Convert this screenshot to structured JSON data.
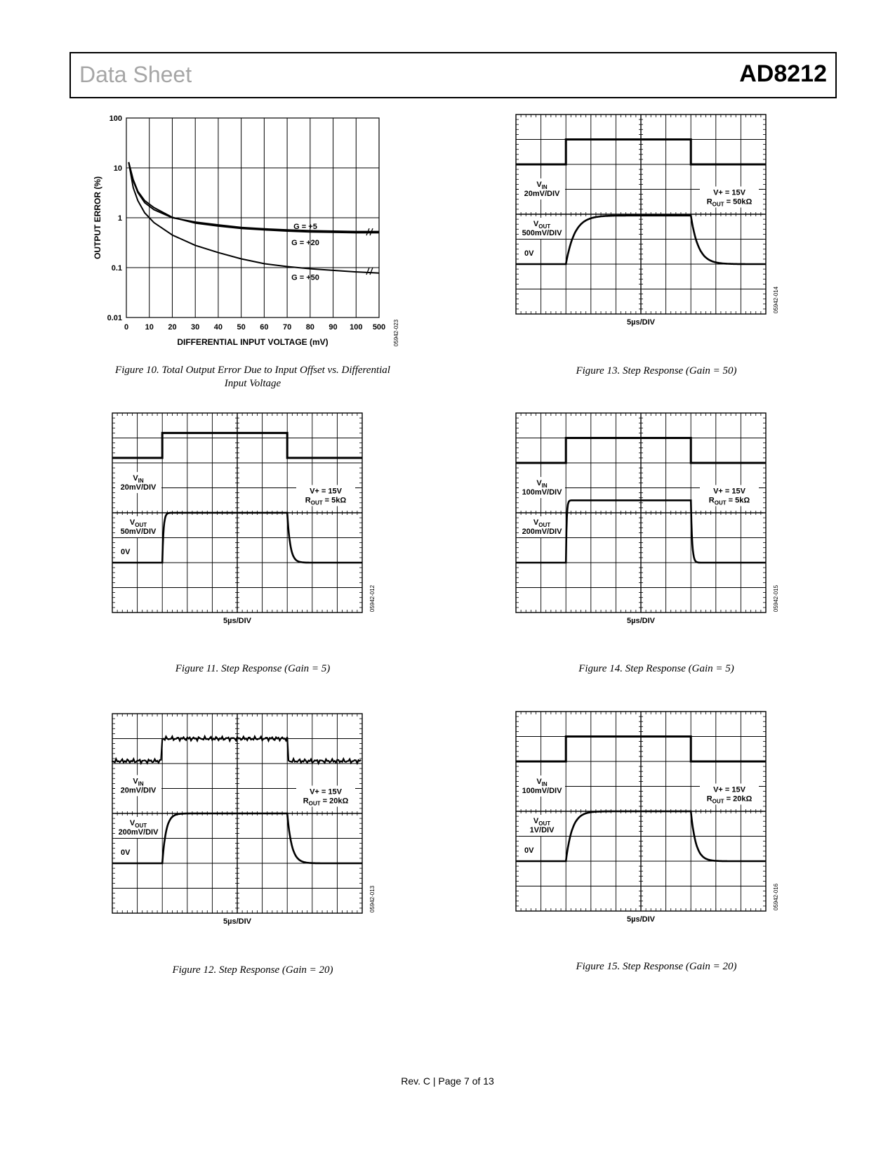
{
  "header": {
    "left": "Data Sheet",
    "right": "AD8212"
  },
  "footer": "Rev. C | Page 7 of 13",
  "chart_data": [
    {
      "id": "fig10",
      "type": "line",
      "caption_line1": "Figure 10. Total Output Error Due to Input Offset vs. Differential",
      "caption_line2": "Input Voltage",
      "xlabel": "DIFFERENTIAL INPUT VOLTAGE (mV)",
      "ylabel": "OUTPUT ERROR (%)",
      "code": "05942-023",
      "yscale": "log",
      "ylim": [
        0.01,
        100
      ],
      "xlim": [
        0,
        110
      ],
      "x_ticks": [
        "0",
        "10",
        "20",
        "30",
        "40",
        "50",
        "60",
        "70",
        "80",
        "90",
        "100",
        "500"
      ],
      "y_ticks": [
        "0.01",
        "0.1",
        "1",
        "10",
        "100"
      ],
      "grid": true,
      "series": [
        {
          "name": "G = +5",
          "x": [
            1,
            3,
            5,
            8,
            12,
            20,
            30,
            40,
            50,
            60,
            70,
            80,
            90,
            100,
            105,
            110
          ],
          "y": [
            13,
            5.5,
            3.2,
            2.0,
            1.45,
            1.0,
            0.82,
            0.72,
            0.64,
            0.6,
            0.57,
            0.55,
            0.54,
            0.53,
            0.53,
            0.53
          ]
        },
        {
          "name": "G = +20",
          "x": [
            1,
            3,
            5,
            8,
            12,
            20,
            30,
            40,
            50,
            60,
            70,
            80,
            90,
            100,
            105,
            110
          ],
          "y": [
            13,
            5.8,
            3.4,
            2.2,
            1.6,
            1.02,
            0.78,
            0.68,
            0.61,
            0.57,
            0.54,
            0.52,
            0.51,
            0.5,
            0.5,
            0.5
          ]
        },
        {
          "name": "G = +50",
          "x": [
            1,
            3,
            5,
            8,
            12,
            20,
            30,
            40,
            50,
            60,
            70,
            80,
            90,
            100,
            105,
            110
          ],
          "y": [
            13,
            4.0,
            2.2,
            1.25,
            0.8,
            0.45,
            0.28,
            0.2,
            0.15,
            0.12,
            0.105,
            0.095,
            0.088,
            0.082,
            0.08,
            0.078
          ]
        }
      ]
    },
    {
      "id": "fig11",
      "type": "line",
      "caption": "Figure 11. Step Response (Gain = 5)",
      "code": "05942-012",
      "xlabel": "5µs/DIV",
      "vin_sub": "IN",
      "vin_scale": "20mV/DIV",
      "vout_sub": "OUT",
      "vout_scale": "50mV/DIV",
      "zero_label": "0V",
      "cond1": "V+ = 15V",
      "rout_sub": "OUT",
      "rout_value": " = 5kΩ",
      "vin_levels_div": [
        6.2,
        7.2
      ],
      "vout_levels_div": [
        2.0,
        4.0
      ],
      "step_up_div": 2.0,
      "step_down_div": 7.0,
      "rise_tau_div": 0.05,
      "fall_tau_div": 0.12,
      "noisy": false
    },
    {
      "id": "fig12",
      "type": "line",
      "caption": "Figure 12. Step Response (Gain = 20)",
      "code": "05942-013",
      "xlabel": "5µs/DIV",
      "vin_sub": "IN",
      "vin_scale": "20mV/DIV",
      "vout_sub": "OUT",
      "vout_scale": "200mV/DIV",
      "zero_label": "0V",
      "cond1": "V+ = 15V",
      "rout_sub": "OUT",
      "rout_value": " = 20kΩ",
      "vin_levels_div": [
        6.1,
        7.0
      ],
      "vout_levels_div": [
        2.0,
        4.0
      ],
      "step_up_div": 2.0,
      "step_down_div": 7.0,
      "rise_tau_div": 0.15,
      "fall_tau_div": 0.18,
      "noisy": true
    },
    {
      "id": "fig13",
      "type": "line",
      "caption": "Figure 13. Step Response (Gain = 50)",
      "code": "05942-014",
      "xlabel": "5µs/DIV",
      "vin_sub": "IN",
      "vin_scale": "20mV/DIV",
      "vout_sub": "OUT",
      "vout_scale": "500mV/DIV",
      "zero_label": "0V",
      "cond1": "V+ = 15V",
      "rout_sub": "OUT",
      "rout_value": " = 50kΩ",
      "vin_levels_div": [
        6.0,
        7.0
      ],
      "vout_levels_div": [
        2.0,
        3.95
      ],
      "step_up_div": 2.0,
      "step_down_div": 7.0,
      "rise_tau_div": 0.35,
      "fall_tau_div": 0.3,
      "noisy": false
    },
    {
      "id": "fig14",
      "type": "line",
      "caption": "Figure 14. Step Response (Gain = 5)",
      "code": "05942-015",
      "xlabel": "5µs/DIV",
      "vin_sub": "IN",
      "vin_scale": "100mV/DIV",
      "vout_sub": "OUT",
      "vout_scale": "200mV/DIV",
      "zero_label": "",
      "cond1": "V+ = 15V",
      "rout_sub": "OUT",
      "rout_value": " = 5kΩ",
      "vin_levels_div": [
        6.0,
        7.0
      ],
      "vout_levels_div": [
        2.0,
        4.5
      ],
      "step_up_div": 2.0,
      "step_down_div": 7.0,
      "rise_tau_div": 0.03,
      "fall_tau_div": 0.05,
      "noisy": false
    },
    {
      "id": "fig15",
      "type": "line",
      "caption": "Figure 15. Step Response (Gain = 20)",
      "code": "05942-016",
      "xlabel": "5µs/DIV",
      "vin_sub": "IN",
      "vin_scale": "100mV/DIV",
      "vout_sub": "OUT",
      "vout_scale": "1V/DIV",
      "zero_label": "0V",
      "cond1": "V+ = 15V",
      "rout_sub": "OUT",
      "rout_value": " = 20kΩ",
      "vin_levels_div": [
        6.0,
        7.0
      ],
      "vout_levels_div": [
        2.0,
        4.0
      ],
      "step_up_div": 2.0,
      "step_down_div": 7.0,
      "rise_tau_div": 0.25,
      "fall_tau_div": 0.2,
      "noisy": false
    }
  ]
}
